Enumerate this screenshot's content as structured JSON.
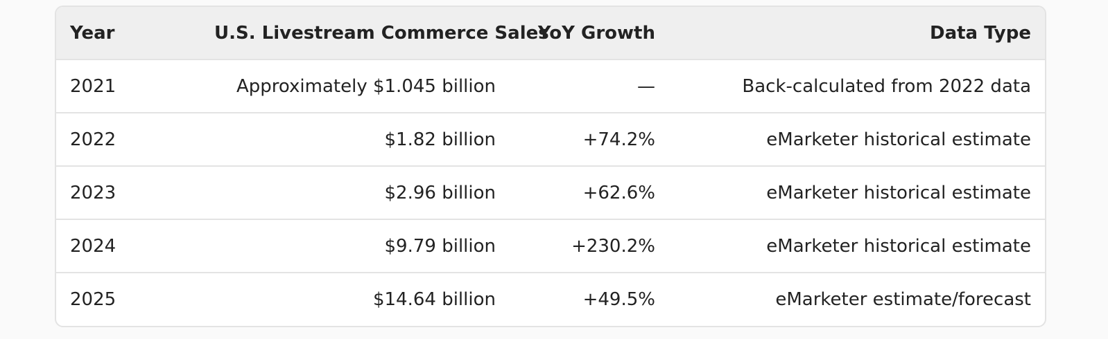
{
  "table": {
    "headers": {
      "year": "Year",
      "sales": "U.S. Livestream Commerce Sales",
      "growth": "YoY Growth",
      "type": "Data Type"
    },
    "rows": [
      {
        "year": "2021",
        "sales": "Approximately $1.045 billion",
        "growth": "—",
        "type": "Back-calculated from 2022 data"
      },
      {
        "year": "2022",
        "sales": "$1.82 billion",
        "growth": "+74.2%",
        "type": "eMarketer historical estimate"
      },
      {
        "year": "2023",
        "sales": "$2.96 billion",
        "growth": "+62.6%",
        "type": "eMarketer historical estimate"
      },
      {
        "year": "2024",
        "sales": "$9.79 billion",
        "growth": "+230.2%",
        "type": "eMarketer historical estimate"
      },
      {
        "year": "2025",
        "sales": "$14.64 billion",
        "growth": "+49.5%",
        "type": "eMarketer estimate/forecast"
      }
    ]
  }
}
